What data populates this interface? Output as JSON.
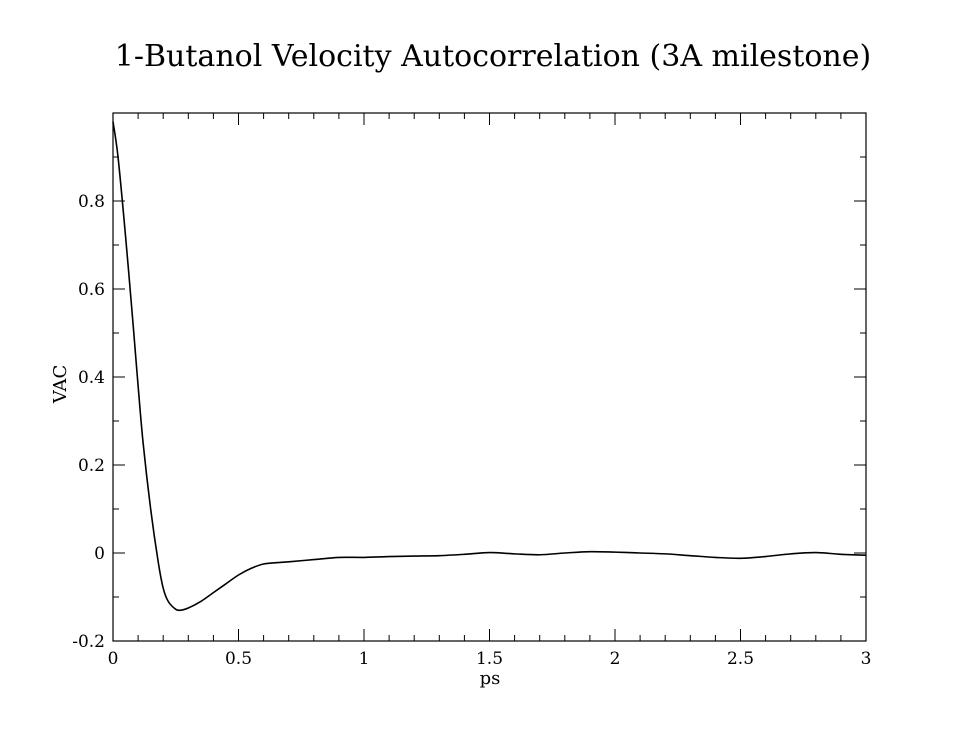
{
  "chart_data": {
    "type": "line",
    "title": "1-Butanol Velocity Autocorrelation (3A milestone)",
    "xlabel": "ps",
    "ylabel": "VAC",
    "xlim": [
      0,
      3
    ],
    "ylim": [
      -0.2,
      1.0
    ],
    "x_ticks": [
      {
        "value": 0,
        "label": "0"
      },
      {
        "value": 0.5,
        "label": "0.5"
      },
      {
        "value": 1,
        "label": "1"
      },
      {
        "value": 1.5,
        "label": "1.5"
      },
      {
        "value": 2,
        "label": "2"
      },
      {
        "value": 2.5,
        "label": "2.5"
      },
      {
        "value": 3,
        "label": "3"
      }
    ],
    "y_ticks": [
      {
        "value": -0.2,
        "label": "-0.2"
      },
      {
        "value": 0,
        "label": "0"
      },
      {
        "value": 0.2,
        "label": "0.2"
      },
      {
        "value": 0.4,
        "label": "0.4"
      },
      {
        "value": 0.6,
        "label": "0.6"
      },
      {
        "value": 0.8,
        "label": "0.8"
      }
    ],
    "x_minor_step": 0.1,
    "y_minor_step": 0.1,
    "grid": false,
    "series": [
      {
        "x": [
          0,
          0.02,
          0.05,
          0.08,
          0.1,
          0.12,
          0.15,
          0.18,
          0.2,
          0.22,
          0.25,
          0.27,
          0.3,
          0.35,
          0.4,
          0.45,
          0.5,
          0.55,
          0.6,
          0.65,
          0.7,
          0.8,
          0.9,
          1.0,
          1.1,
          1.2,
          1.3,
          1.4,
          1.5,
          1.6,
          1.7,
          1.8,
          1.9,
          2.0,
          2.1,
          2.2,
          2.3,
          2.4,
          2.5,
          2.6,
          2.7,
          2.8,
          2.9,
          3.0
        ],
        "y": [
          0.98,
          0.9,
          0.72,
          0.52,
          0.38,
          0.25,
          0.1,
          -0.02,
          -0.08,
          -0.11,
          -0.128,
          -0.13,
          -0.125,
          -0.11,
          -0.09,
          -0.07,
          -0.05,
          -0.035,
          -0.025,
          -0.022,
          -0.02,
          -0.015,
          -0.01,
          -0.01,
          -0.008,
          -0.007,
          -0.006,
          -0.003,
          0.001,
          -0.002,
          -0.004,
          0.0,
          0.003,
          0.002,
          0.0,
          -0.002,
          -0.006,
          -0.01,
          -0.012,
          -0.008,
          -0.002,
          0.001,
          -0.003,
          -0.005
        ]
      }
    ]
  }
}
